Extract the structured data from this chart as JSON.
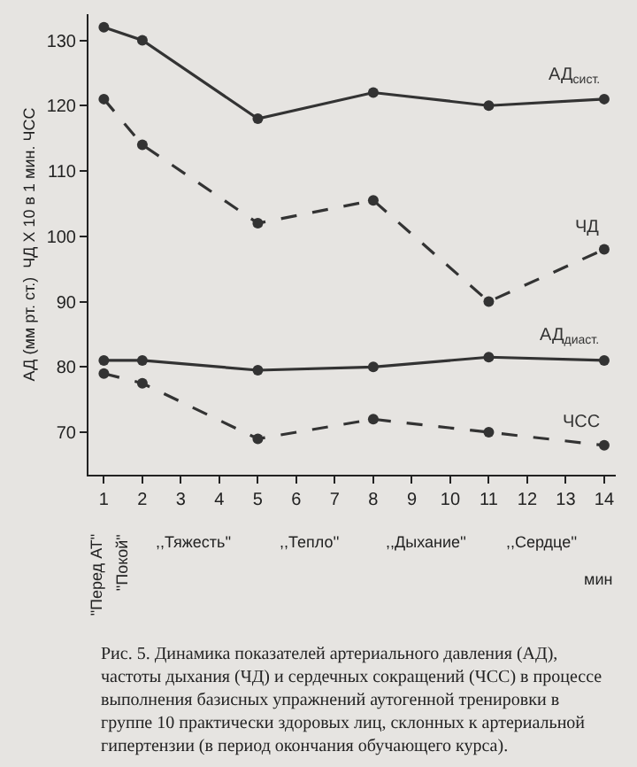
{
  "chart_data": {
    "type": "line",
    "ylabel": "АД (мм рт. ст.)  ЧД Х 10 в 1 мин. ЧСС",
    "xlabel": "мин",
    "x": [
      1,
      2,
      5,
      8,
      11,
      14
    ],
    "xlim": [
      0.6,
      14.3
    ],
    "xticks": [
      1,
      2,
      3,
      4,
      5,
      6,
      7,
      8,
      9,
      10,
      11,
      12,
      13,
      14
    ],
    "ylim": [
      63.5,
      134
    ],
    "yticks": [
      70,
      80,
      90,
      100,
      110,
      120,
      130
    ],
    "series": [
      {
        "name": "АД$_{сист.}$",
        "color": "#333333",
        "line_style": "solid",
        "values": [
          132,
          130,
          118,
          122,
          120,
          121
        ]
      },
      {
        "name": "ЧД",
        "color": "#333333",
        "line_style": "dashed",
        "values": [
          121,
          114,
          102,
          105.5,
          90,
          98
        ]
      },
      {
        "name": "АД$_{диаст.}$",
        "color": "#333333",
        "line_style": "solid",
        "values": [
          81,
          81,
          79.5,
          80,
          81.5,
          81
        ]
      },
      {
        "name": "ЧСС",
        "color": "#333333",
        "line_style": "dashed",
        "values": [
          79,
          77.5,
          69,
          72,
          70,
          68
        ]
      }
    ],
    "marker": "circle",
    "grid": false,
    "legend": false,
    "annotations": [
      "\"Перед АТ\"",
      "\"Покой\"",
      ",,Тяжесть''",
      ",,Тепло''",
      ",,Дыхание''",
      ",,Сердце''",
      "Рис. 5. Динамика показателей артериального давления (АД), частоты дыхания (ЧД) и сердечных сокращений (ЧСС) в процессе выполнения базисных упражнений аутогенной тренировки в группе 10 практически здоровых лиц, склонных к артериальной гипертензии (в период окончания обучающего курса)."
    ]
  }
}
